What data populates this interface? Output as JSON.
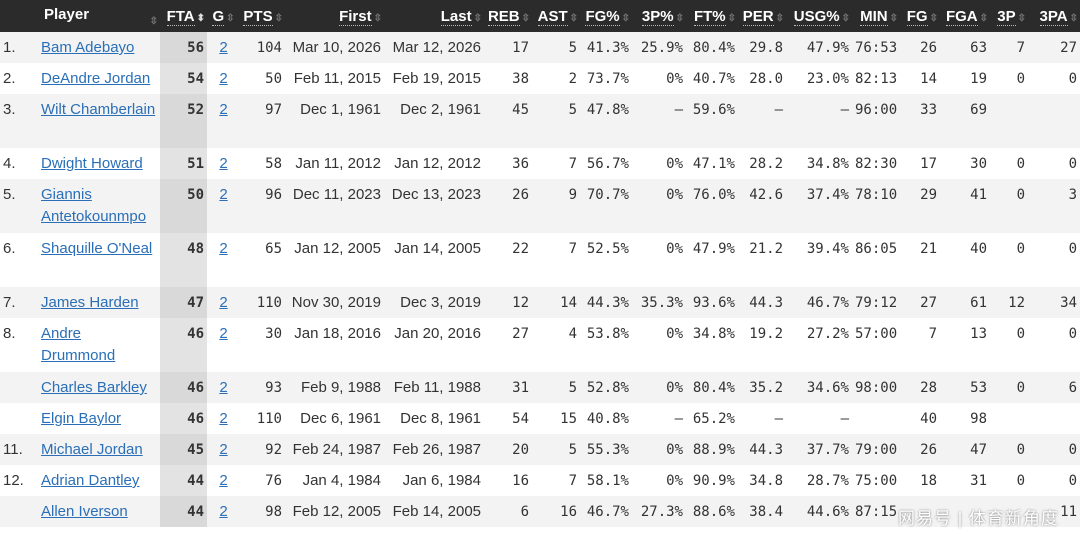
{
  "columns": [
    "",
    "Player",
    "FTA",
    "G",
    "PTS",
    "First",
    "Last",
    "REB",
    "AST",
    "FG%",
    "3P%",
    "FT%",
    "PER",
    "USG%",
    "MIN",
    "FG",
    "FGA",
    "3P",
    "3PA"
  ],
  "sorted_column": "FTA",
  "rows": [
    [
      "1.",
      "Bam Adebayo",
      "56",
      "2",
      "104",
      "Mar 10, 2026",
      "Mar 12, 2026",
      "17",
      "5",
      "41.3%",
      "25.9%",
      "80.4%",
      "29.8",
      "47.9%",
      "76:53",
      "26",
      "63",
      "7",
      "27"
    ],
    [
      "2.",
      "DeAndre Jordan",
      "54",
      "2",
      "50",
      "Feb 11, 2015",
      "Feb 19, 2015",
      "38",
      "2",
      "73.7%",
      "0%",
      "40.7%",
      "28.0",
      "23.0%",
      "82:13",
      "14",
      "19",
      "0",
      "0"
    ],
    [
      "3.",
      "Wilt Chamberlain",
      "52",
      "2",
      "97",
      "Dec 1, 1961",
      "Dec 2, 1961",
      "45",
      "5",
      "47.8%",
      "–",
      "59.6%",
      "–",
      "–",
      "96:00",
      "33",
      "69",
      "",
      ""
    ],
    [
      "4.",
      "Dwight Howard",
      "51",
      "2",
      "58",
      "Jan 11, 2012",
      "Jan 12, 2012",
      "36",
      "7",
      "56.7%",
      "0%",
      "47.1%",
      "28.2",
      "34.8%",
      "82:30",
      "17",
      "30",
      "0",
      "0"
    ],
    [
      "5.",
      "Giannis Antetokounmpo",
      "50",
      "2",
      "96",
      "Dec 11, 2023",
      "Dec 13, 2023",
      "26",
      "9",
      "70.7%",
      "0%",
      "76.0%",
      "42.6",
      "37.4%",
      "78:10",
      "29",
      "41",
      "0",
      "3"
    ],
    [
      "6.",
      "Shaquille O'Neal",
      "48",
      "2",
      "65",
      "Jan 12, 2005",
      "Jan 14, 2005",
      "22",
      "7",
      "52.5%",
      "0%",
      "47.9%",
      "21.2",
      "39.4%",
      "86:05",
      "21",
      "40",
      "0",
      "0"
    ],
    [
      "7.",
      "James Harden",
      "47",
      "2",
      "110",
      "Nov 30, 2019",
      "Dec 3, 2019",
      "12",
      "14",
      "44.3%",
      "35.3%",
      "93.6%",
      "44.3",
      "46.7%",
      "79:12",
      "27",
      "61",
      "12",
      "34"
    ],
    [
      "8.",
      "Andre Drummond",
      "46",
      "2",
      "30",
      "Jan 18, 2016",
      "Jan 20, 2016",
      "27",
      "4",
      "53.8%",
      "0%",
      "34.8%",
      "19.2",
      "27.2%",
      "57:00",
      "7",
      "13",
      "0",
      "0"
    ],
    [
      "",
      "Charles Barkley",
      "46",
      "2",
      "93",
      "Feb 9, 1988",
      "Feb 11, 1988",
      "31",
      "5",
      "52.8%",
      "0%",
      "80.4%",
      "35.2",
      "34.6%",
      "98:00",
      "28",
      "53",
      "0",
      "6"
    ],
    [
      "",
      "Elgin Baylor",
      "46",
      "2",
      "110",
      "Dec 6, 1961",
      "Dec 8, 1961",
      "54",
      "15",
      "40.8%",
      "–",
      "65.2%",
      "–",
      "–",
      "",
      "40",
      "98",
      "",
      ""
    ],
    [
      "11.",
      "Michael Jordan",
      "45",
      "2",
      "92",
      "Feb 24, 1987",
      "Feb 26, 1987",
      "20",
      "5",
      "55.3%",
      "0%",
      "88.9%",
      "44.3",
      "37.7%",
      "79:00",
      "26",
      "47",
      "0",
      "0"
    ],
    [
      "12.",
      "Adrian Dantley",
      "44",
      "2",
      "76",
      "Jan 4, 1984",
      "Jan 6, 1984",
      "16",
      "7",
      "58.1%",
      "0%",
      "90.9%",
      "34.8",
      "28.7%",
      "75:00",
      "18",
      "31",
      "0",
      "0"
    ],
    [
      "",
      "Allen Iverson",
      "44",
      "2",
      "98",
      "Feb 12, 2005",
      "Feb 14, 2005",
      "6",
      "16",
      "46.7%",
      "27.3%",
      "88.6%",
      "38.4",
      "44.6%",
      "87:15",
      "",
      "",
      "",
      "11"
    ]
  ],
  "watermark": "网易号 | 体育新角度"
}
